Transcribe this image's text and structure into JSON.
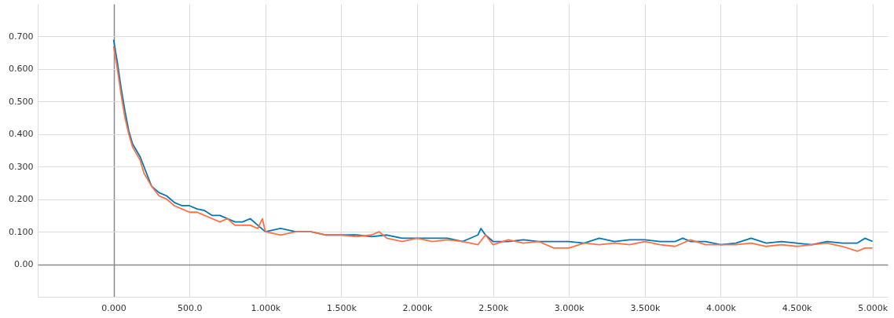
{
  "chart_data": {
    "type": "line",
    "grid": true,
    "line_style": "solid",
    "xlim": [
      -500,
      5100
    ],
    "ylim": [
      -0.1,
      0.8
    ],
    "xticks": [
      {
        "value": -500,
        "label": null
      },
      {
        "value": 0,
        "label": "0.000"
      },
      {
        "value": 500,
        "label": "500.0"
      },
      {
        "value": 1000,
        "label": "1.000k"
      },
      {
        "value": 1500,
        "label": "1.500k"
      },
      {
        "value": 2000,
        "label": "2.000k"
      },
      {
        "value": 2500,
        "label": "2.500k"
      },
      {
        "value": 3000,
        "label": "3.000k"
      },
      {
        "value": 3500,
        "label": "3.500k"
      },
      {
        "value": 4000,
        "label": "4.000k"
      },
      {
        "value": 4500,
        "label": "4.500k"
      },
      {
        "value": 5000,
        "label": "5.000k"
      }
    ],
    "yticks": [
      {
        "value": -0.1,
        "label": null
      },
      {
        "value": 0,
        "label": "0.00"
      },
      {
        "value": 0.1,
        "label": "0.100"
      },
      {
        "value": 0.2,
        "label": "0.200"
      },
      {
        "value": 0.3,
        "label": "0.300"
      },
      {
        "value": 0.4,
        "label": "0.400"
      },
      {
        "value": 0.5,
        "label": "0.500"
      },
      {
        "value": 0.6,
        "label": "0.600"
      },
      {
        "value": 0.7,
        "label": "0.700"
      }
    ],
    "series": [
      {
        "color": "#0077bb",
        "x": [
          0,
          25,
          50,
          75,
          100,
          125,
          150,
          175,
          200,
          250,
          300,
          350,
          400,
          450,
          500,
          550,
          600,
          650,
          700,
          750,
          800,
          850,
          900,
          950,
          1000,
          1100,
          1200,
          1300,
          1400,
          1500,
          1600,
          1700,
          1800,
          1900,
          2000,
          2100,
          2200,
          2300,
          2400,
          2420,
          2450,
          2500,
          2600,
          2700,
          2800,
          2900,
          3000,
          3100,
          3200,
          3300,
          3400,
          3500,
          3600,
          3700,
          3750,
          3800,
          3900,
          4000,
          4100,
          4200,
          4300,
          4400,
          4500,
          4600,
          4700,
          4800,
          4900,
          4950,
          5000
        ],
        "values": [
          0.69,
          0.62,
          0.54,
          0.47,
          0.41,
          0.37,
          0.35,
          0.33,
          0.3,
          0.24,
          0.22,
          0.21,
          0.19,
          0.18,
          0.18,
          0.17,
          0.165,
          0.15,
          0.15,
          0.14,
          0.13,
          0.13,
          0.14,
          0.12,
          0.1,
          0.11,
          0.1,
          0.1,
          0.09,
          0.09,
          0.09,
          0.085,
          0.09,
          0.08,
          0.08,
          0.08,
          0.08,
          0.07,
          0.09,
          0.11,
          0.09,
          0.07,
          0.07,
          0.075,
          0.07,
          0.07,
          0.07,
          0.065,
          0.08,
          0.07,
          0.075,
          0.075,
          0.07,
          0.07,
          0.08,
          0.07,
          0.07,
          0.06,
          0.065,
          0.08,
          0.065,
          0.07,
          0.065,
          0.06,
          0.07,
          0.065,
          0.065,
          0.08,
          0.07
        ]
      },
      {
        "color": "#ff7043",
        "x": [
          0,
          25,
          50,
          75,
          100,
          125,
          150,
          175,
          200,
          250,
          300,
          350,
          400,
          450,
          500,
          550,
          600,
          650,
          700,
          750,
          800,
          850,
          900,
          950,
          980,
          1000,
          1100,
          1200,
          1300,
          1400,
          1500,
          1600,
          1700,
          1750,
          1800,
          1900,
          2000,
          2100,
          2200,
          2300,
          2400,
          2450,
          2500,
          2600,
          2700,
          2800,
          2900,
          3000,
          3100,
          3200,
          3300,
          3400,
          3500,
          3600,
          3700,
          3800,
          3900,
          4000,
          4100,
          4200,
          4300,
          4400,
          4500,
          4600,
          4700,
          4800,
          4900,
          4950,
          5000
        ],
        "values": [
          0.67,
          0.6,
          0.52,
          0.45,
          0.4,
          0.36,
          0.34,
          0.32,
          0.28,
          0.24,
          0.21,
          0.2,
          0.18,
          0.17,
          0.16,
          0.16,
          0.15,
          0.14,
          0.13,
          0.14,
          0.12,
          0.12,
          0.12,
          0.11,
          0.14,
          0.1,
          0.09,
          0.1,
          0.1,
          0.09,
          0.09,
          0.085,
          0.09,
          0.1,
          0.08,
          0.07,
          0.08,
          0.07,
          0.075,
          0.07,
          0.06,
          0.09,
          0.06,
          0.075,
          0.065,
          0.07,
          0.05,
          0.05,
          0.065,
          0.06,
          0.065,
          0.06,
          0.07,
          0.06,
          0.055,
          0.075,
          0.06,
          0.06,
          0.06,
          0.065,
          0.055,
          0.06,
          0.055,
          0.06,
          0.065,
          0.055,
          0.04,
          0.05,
          0.05
        ]
      }
    ]
  }
}
